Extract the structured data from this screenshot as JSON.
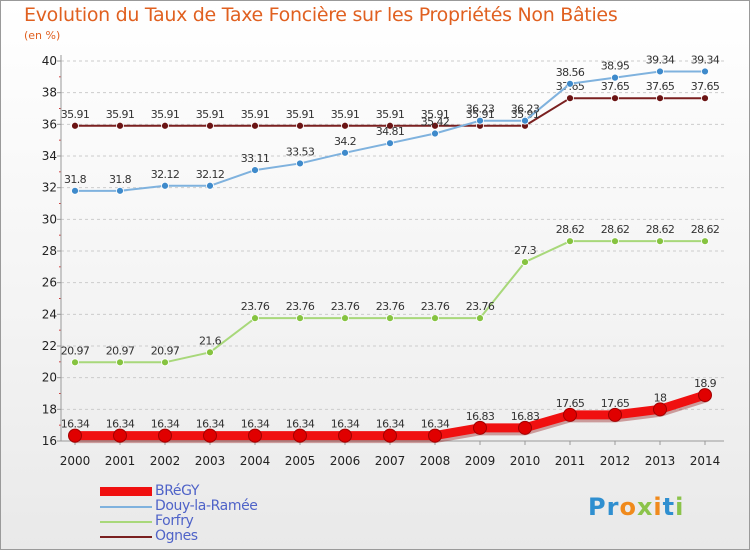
{
  "title": "Evolution du Taux de Taxe Foncière sur les Propriétés Non Bâties",
  "unit_label": "(en %)",
  "colors": {
    "title": "#e06020",
    "axis": "#999999",
    "grid": "#cccccc",
    "legend_text": "#4f63c8"
  },
  "logo": {
    "letters": [
      "P",
      "r",
      "o",
      "x",
      "i",
      "t",
      "i"
    ],
    "colors": [
      "#2f8fd0",
      "#2f8fd0",
      "#f08a1c",
      "#8bc34a",
      "#f08a1c",
      "#2f8fd0",
      "#8bc34a"
    ]
  },
  "chart_data": {
    "type": "line",
    "x": [
      "2000",
      "2001",
      "2002",
      "2003",
      "2004",
      "2005",
      "2006",
      "2007",
      "2008",
      "2009",
      "2010",
      "2011",
      "2012",
      "2013",
      "2014"
    ],
    "ylim": [
      16,
      40
    ],
    "yticks": [
      "16",
      "18",
      "20",
      "22",
      "24",
      "26",
      "28",
      "30",
      "32",
      "34",
      "36",
      "38",
      "40"
    ],
    "grid": "horizontal dashed",
    "legend_position": "bottom-left",
    "series": [
      {
        "name": "Ognes",
        "color": "#7a2020",
        "marker": "#6b1414",
        "values": [
          35.91,
          35.91,
          35.91,
          35.91,
          35.91,
          35.91,
          35.91,
          35.91,
          35.91,
          35.91,
          35.91,
          37.65,
          37.65,
          37.65,
          37.65
        ],
        "labels": [
          "35.91",
          "35.91",
          "35.91",
          "35.91",
          "35.91",
          "35.91",
          "35.91",
          "35.91",
          "35.91",
          "35.91",
          "35.91",
          "37.65",
          "37.65",
          "37.65",
          "37.65"
        ]
      },
      {
        "name": "Douy-la-Ramée",
        "color": "#7fb2de",
        "marker": "#3e8acb",
        "values": [
          31.8,
          31.8,
          32.12,
          32.12,
          33.11,
          33.53,
          34.2,
          34.81,
          35.42,
          36.23,
          36.23,
          38.56,
          38.95,
          39.34,
          39.34
        ],
        "labels": [
          "31.8",
          "31.8",
          "32.12",
          "32.12",
          "33.11",
          "33.53",
          "34.2",
          "34.81",
          "35.42",
          "36.23",
          "36.23",
          "38.56",
          "38.95",
          "39.34",
          "39.34"
        ]
      },
      {
        "name": "Forfry",
        "color": "#a8d87a",
        "marker": "#86c340",
        "values": [
          20.97,
          20.97,
          20.97,
          21.6,
          23.76,
          23.76,
          23.76,
          23.76,
          23.76,
          23.76,
          27.3,
          28.62,
          28.62,
          28.62,
          28.62
        ],
        "labels": [
          "20.97",
          "20.97",
          "20.97",
          "21.6",
          "23.76",
          "23.76",
          "23.76",
          "23.76",
          "23.76",
          "23.76",
          "27.3",
          "28.62",
          "28.62",
          "28.62",
          "28.62"
        ]
      },
      {
        "name": "BRéGY",
        "color": "#f01010",
        "marker": "#e00000",
        "values": [
          16.34,
          16.34,
          16.34,
          16.34,
          16.34,
          16.34,
          16.34,
          16.34,
          16.34,
          16.83,
          16.83,
          17.65,
          17.65,
          18,
          18.9
        ],
        "labels": [
          "16.34",
          "16.34",
          "16.34",
          "16.34",
          "16.34",
          "16.34",
          "16.34",
          "16.34",
          "16.34",
          "16.83",
          "16.83",
          "17.65",
          "17.65",
          "18",
          "18.9"
        ]
      }
    ],
    "legend": [
      {
        "name": "BRéGY",
        "color": "#f01010",
        "thick": true
      },
      {
        "name": "Douy-la-Ramée",
        "color": "#7fb2de",
        "thick": false
      },
      {
        "name": "Forfry",
        "color": "#a8d87a",
        "thick": false
      },
      {
        "name": "Ognes",
        "color": "#7a2020",
        "thick": false
      }
    ]
  }
}
